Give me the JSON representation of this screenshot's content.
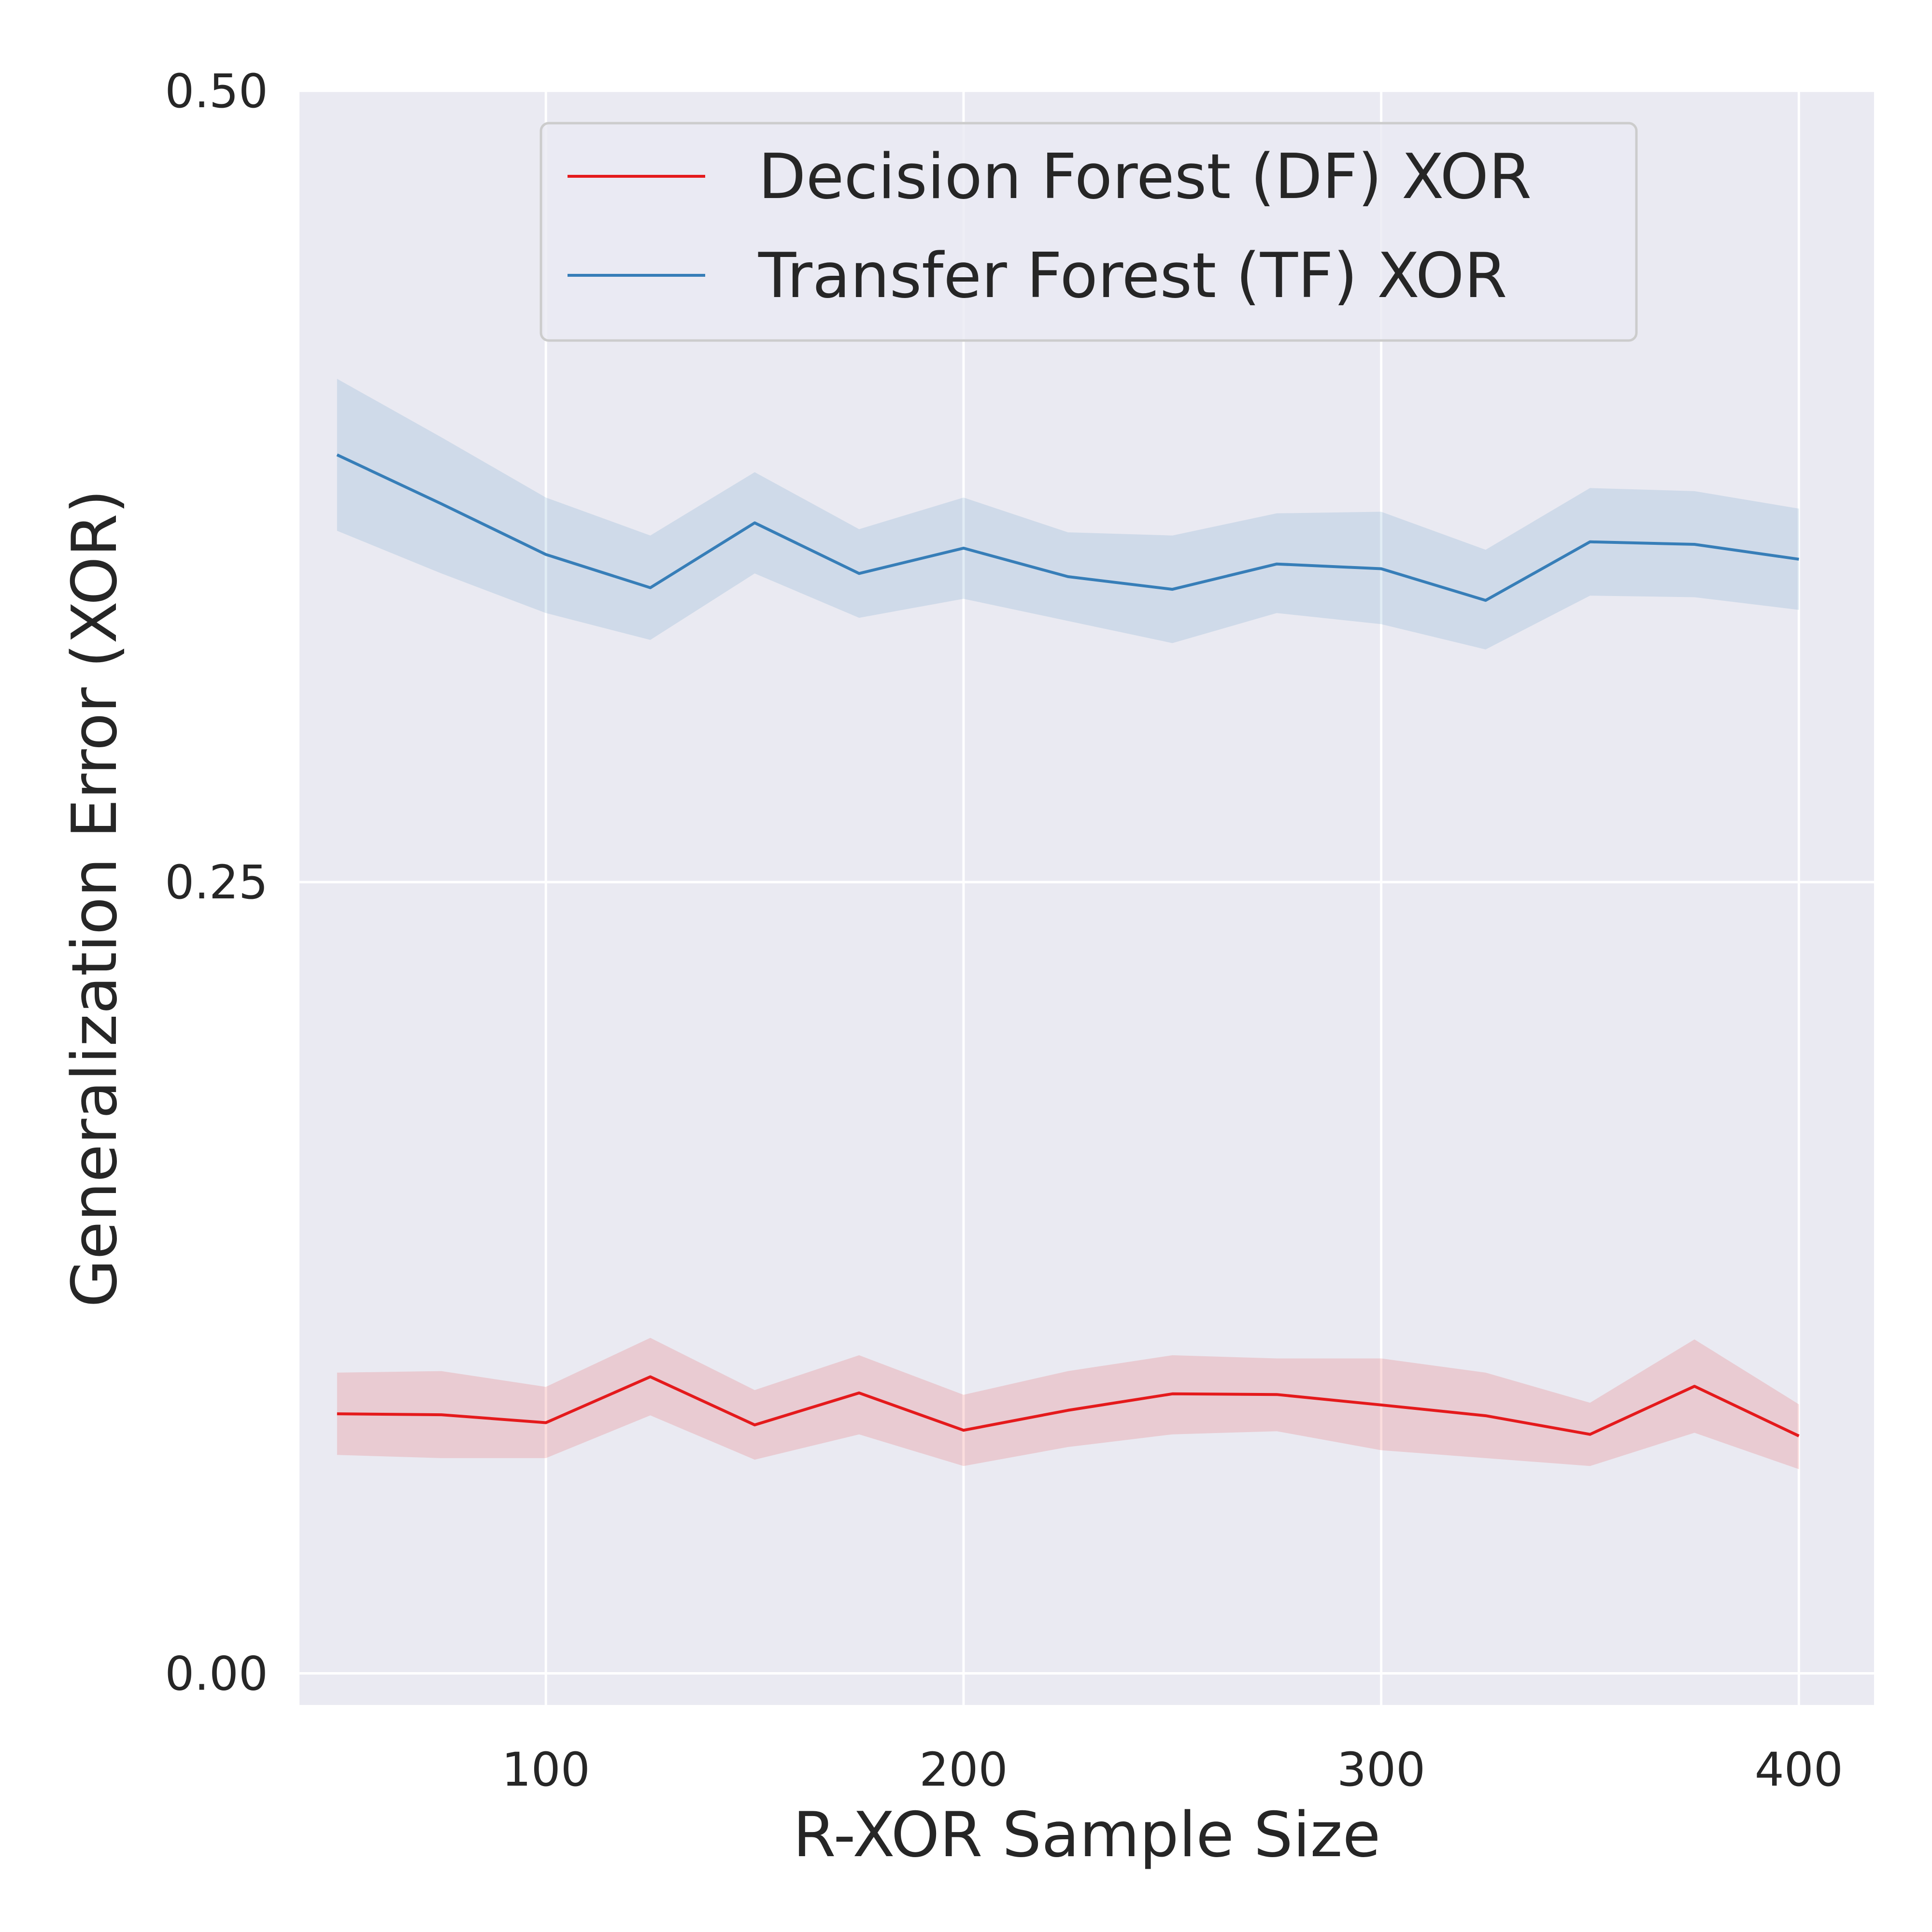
{
  "chart_data": {
    "type": "line",
    "title": "",
    "xlabel": "R-XOR Sample Size",
    "ylabel": "Generalization Error (XOR)",
    "xlim": [
      41,
      418
    ],
    "ylim": [
      -0.01,
      0.5
    ],
    "xticks": [
      100,
      200,
      300,
      400
    ],
    "xtick_labels": [
      "100",
      "200",
      "300",
      "400"
    ],
    "yticks": [
      0.0,
      0.25,
      0.5
    ],
    "ytick_labels": [
      "0.00",
      "0.25",
      "0.50"
    ],
    "grid": true,
    "legend_position": "upper-center",
    "x": [
      50,
      75,
      100,
      125,
      150,
      175,
      200,
      225,
      250,
      275,
      300,
      325,
      350,
      375,
      400
    ],
    "series": [
      {
        "name": "Decision Forest (DF) XOR",
        "color": "#e41a1c",
        "values": [
          0.082,
          0.0817,
          0.0792,
          0.0937,
          0.0785,
          0.0886,
          0.0768,
          0.0831,
          0.0883,
          0.0881,
          0.0848,
          0.0814,
          0.0755,
          0.0907,
          0.075
        ],
        "lower": [
          0.069,
          0.068,
          0.068,
          0.0815,
          0.0675,
          0.0755,
          0.0655,
          0.0715,
          0.0755,
          0.0765,
          0.0705,
          0.068,
          0.0655,
          0.076,
          0.0645
        ],
        "upper": [
          0.095,
          0.0955,
          0.0905,
          0.106,
          0.0895,
          0.1005,
          0.088,
          0.0955,
          0.1005,
          0.0995,
          0.0995,
          0.095,
          0.0855,
          0.1055,
          0.085
        ]
      },
      {
        "name": "Transfer Forest (TF) XOR",
        "color": "#377eb8",
        "values": [
          0.385,
          0.3695,
          0.3535,
          0.343,
          0.3635,
          0.3475,
          0.3555,
          0.3465,
          0.3425,
          0.3505,
          0.349,
          0.339,
          0.3575,
          0.3567,
          0.352
        ],
        "lower": [
          0.361,
          0.3475,
          0.335,
          0.3265,
          0.3475,
          0.3335,
          0.3395,
          0.3325,
          0.3255,
          0.335,
          0.3315,
          0.3235,
          0.3405,
          0.34,
          0.336
        ],
        "upper": [
          0.409,
          0.3905,
          0.3715,
          0.3595,
          0.3795,
          0.3615,
          0.3715,
          0.3605,
          0.3595,
          0.3665,
          0.367,
          0.355,
          0.3745,
          0.3735,
          0.368
        ]
      }
    ]
  }
}
